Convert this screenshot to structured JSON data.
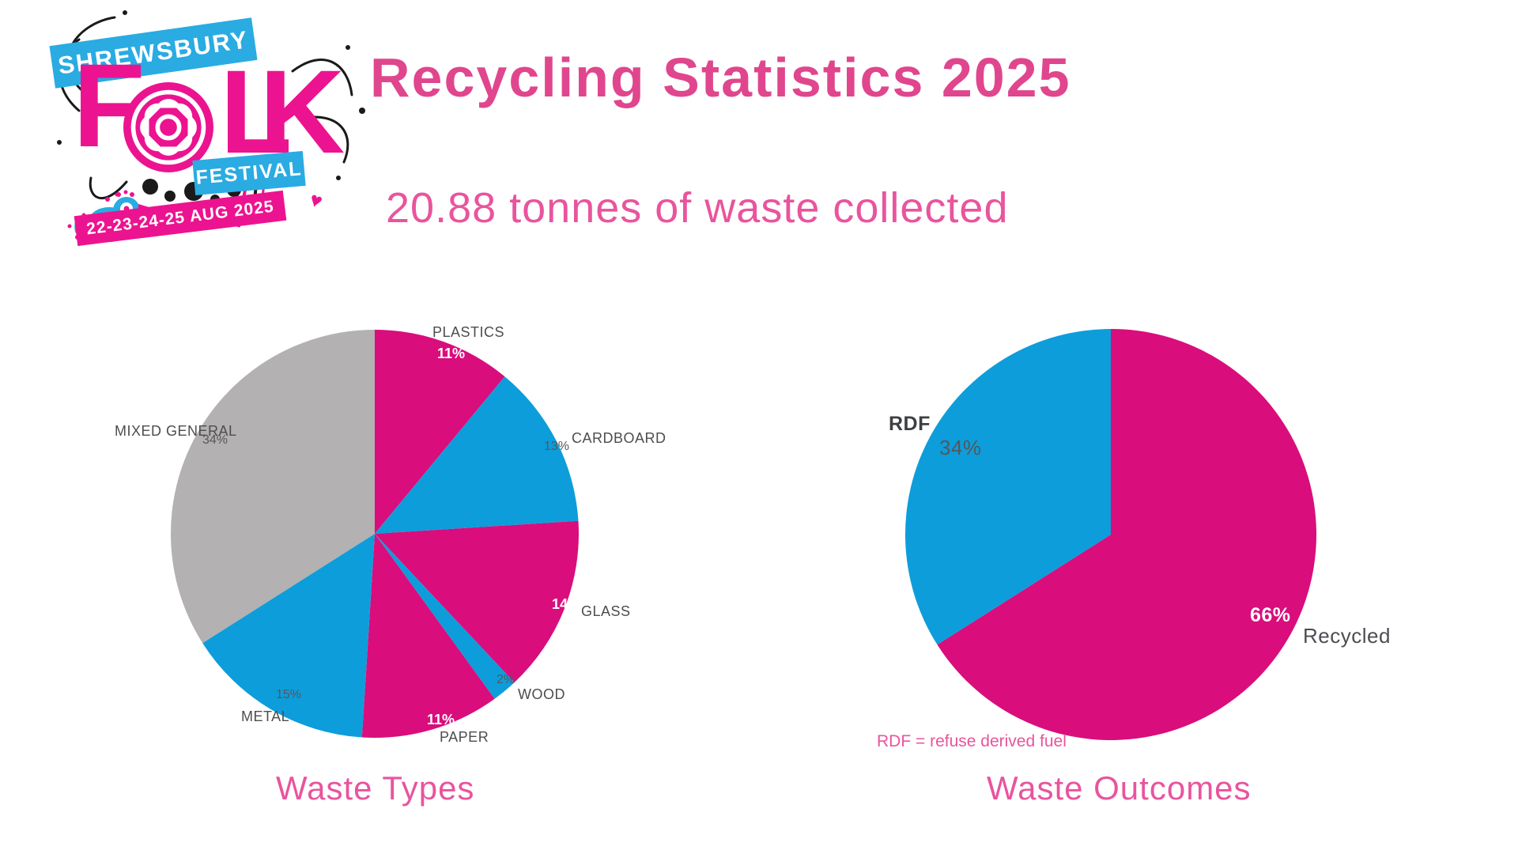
{
  "header": {
    "title": "Recycling Statistics 2025",
    "subtitle": "20.88 tonnes of waste collected"
  },
  "logo": {
    "banner_top": "SHREWSBURY",
    "letter_f": "F",
    "letter_l": "L",
    "letter_k": "K",
    "banner_mid": "FESTIVAL",
    "banner_date": "22-23-24-25 AUG 2025",
    "heart": "♥"
  },
  "colors": {
    "pink": "#d90d7c",
    "blue": "#0d9ddb",
    "gray": "#b3b1b1",
    "title_pink": "#e0468d",
    "accent_pink": "#e9549d",
    "label_dark": "#4d4d4d",
    "pct_dark": "#55575c",
    "logo_blue": "#2aabe2",
    "logo_pink": "#ec1390",
    "logo_black": "#1a1a1a"
  },
  "chart_data": [
    {
      "type": "pie",
      "title": "Waste Types",
      "start_angle_deg": 0,
      "direction": "clockwise",
      "legend_position": "outside-labels",
      "slices": [
        {
          "label": "PLASTICS",
          "value": 11,
          "pct_label": "11%",
          "color": "pink"
        },
        {
          "label": "CARDBOARD",
          "value": 13,
          "pct_label": "13%",
          "color": "blue"
        },
        {
          "label": "GLASS",
          "value": 14,
          "pct_label": "14%",
          "color": "pink"
        },
        {
          "label": "WOOD",
          "value": 2,
          "pct_label": "2%",
          "color": "blue"
        },
        {
          "label": "PAPER",
          "value": 11,
          "pct_label": "11%",
          "color": "pink"
        },
        {
          "label": "METAL",
          "value": 15,
          "pct_label": "15%",
          "color": "blue"
        },
        {
          "label": "MIXED GENERAL",
          "value": 34,
          "pct_label": "34%",
          "color": "gray"
        }
      ]
    },
    {
      "type": "pie",
      "title": "Waste Outcomes",
      "start_angle_deg": 0,
      "direction": "clockwise",
      "legend_position": "outside-labels",
      "footnote": "RDF = refuse derived fuel",
      "slices": [
        {
          "label": "Recycled",
          "value": 66,
          "pct_label": "66%",
          "color": "pink"
        },
        {
          "label": "RDF",
          "value": 34,
          "pct_label": "34%",
          "color": "blue"
        }
      ]
    }
  ]
}
